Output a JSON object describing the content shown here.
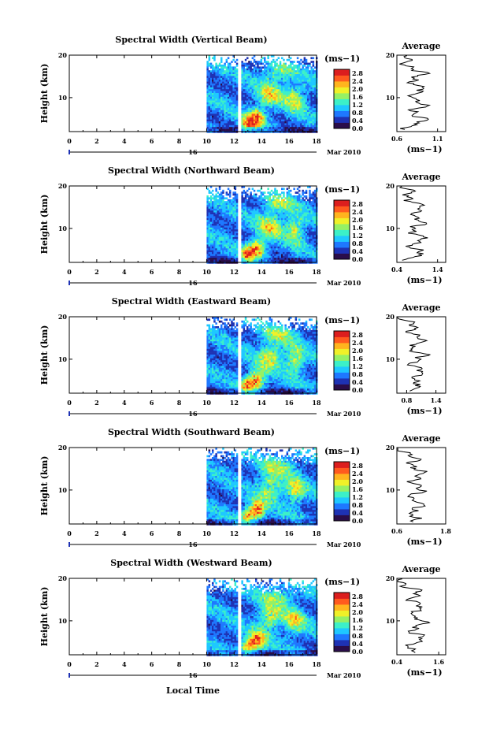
{
  "chart_data": {
    "type": "heatmap",
    "common": {
      "xlabel": "Local Time",
      "date_day": "16",
      "date_label": "Mar 2010",
      "ylabel": "Height (km)",
      "x_ticks": [
        "0",
        "2",
        "4",
        "6",
        "8",
        "10",
        "12",
        "14",
        "16",
        "18"
      ],
      "y_ticks": [
        "20",
        "10"
      ],
      "xlim": [
        0,
        18
      ],
      "ylim": [
        2,
        20
      ],
      "colorbar_unit": "(ms−1)",
      "colorbar_ticks": [
        "2.8",
        "2.4",
        "2.0",
        "1.6",
        "1.2",
        "0.8",
        "0.4",
        "0.0"
      ],
      "colorbar_range": [
        0,
        3.0
      ],
      "colormap": [
        "#2a0d4a",
        "#1e32b4",
        "#1e78ff",
        "#1ec8ff",
        "#3cf0c8",
        "#96f064",
        "#f0f028",
        "#ffb41e",
        "#ff5a1e",
        "#dc1e1e"
      ],
      "data_coverage_hours": [
        10,
        18
      ],
      "data_gap_hours": [
        12.2,
        12.5
      ],
      "avg_title": "Average",
      "avg_xlabel": "(ms−1)",
      "avg_y_ticks": [
        "20",
        "10"
      ]
    },
    "panels": [
      {
        "title": "Spectral Width (Vertical Beam)",
        "avg_ticks": [
          "0.6",
          "1.1"
        ],
        "avg_xlim": [
          0.6,
          1.2
        ]
      },
      {
        "title": "Spectral Width (Northward Beam)",
        "avg_ticks": [
          "0.4",
          "1.4"
        ],
        "avg_xlim": [
          0.4,
          1.6
        ]
      },
      {
        "title": "Spectral Width (Eastward Beam)",
        "avg_ticks": [
          "0.8",
          "1.4"
        ],
        "avg_xlim": [
          0.6,
          1.6
        ]
      },
      {
        "title": "Spectral Width (Southward Beam)",
        "avg_ticks": [
          "0.6",
          "1.8"
        ],
        "avg_xlim": [
          0.6,
          1.8
        ]
      },
      {
        "title": "Spectral Width (Westward Beam)",
        "avg_ticks": [
          "0.4",
          "1.6"
        ],
        "avg_xlim": [
          0.4,
          1.8
        ]
      }
    ]
  }
}
